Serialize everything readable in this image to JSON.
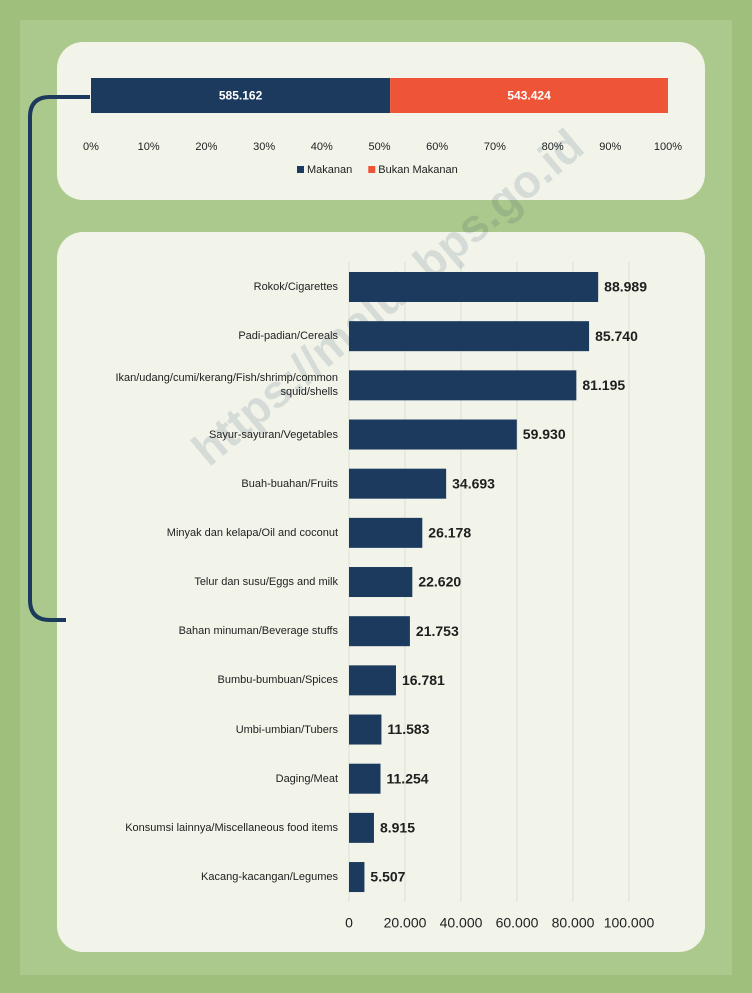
{
  "chart_data": [
    {
      "type": "bar",
      "orientation": "horizontal",
      "stacked": "percent",
      "series": [
        {
          "name": "Makanan",
          "color": "#1c3a5e",
          "values": [
            585162
          ],
          "value_labels": [
            "585.162"
          ]
        },
        {
          "name": "Bukan Makanan",
          "color": "#ee5536",
          "values": [
            543424
          ],
          "value_labels": [
            "543.424"
          ]
        }
      ],
      "xlim": [
        0,
        100
      ],
      "xticks": [
        {
          "value": 0,
          "label": "0%"
        },
        {
          "value": 10,
          "label": "10%"
        },
        {
          "value": 20,
          "label": "20%"
        },
        {
          "value": 30,
          "label": "30%"
        },
        {
          "value": 40,
          "label": "40%"
        },
        {
          "value": 50,
          "label": "50%"
        },
        {
          "value": 60,
          "label": "60%"
        },
        {
          "value": 70,
          "label": "70%"
        },
        {
          "value": 80,
          "label": "80%"
        },
        {
          "value": 90,
          "label": "90%"
        },
        {
          "value": 100,
          "label": "100%"
        }
      ],
      "legend": "bottom"
    },
    {
      "type": "bar",
      "orientation": "horizontal",
      "categories": [
        "Rokok/Cigarettes",
        "Padi-padian/Cereals",
        "Ikan/udang/cumi/kerang/Fish/shrimp/common squid/shells",
        "Sayur-sayuran/Vegetables",
        "Buah-buahan/Fruits",
        "Minyak dan kelapa/Oil and coconut",
        "Telur dan susu/Eggs and milk",
        "Bahan minuman/Beverage stuffs",
        "Bumbu-bumbuan/Spices",
        "Umbi-umbian/Tubers",
        "Daging/Meat",
        "Konsumsi lainnya/Miscellaneous food items",
        "Kacang-kacangan/Legumes"
      ],
      "values": [
        88989,
        85740,
        81195,
        59930,
        34693,
        26178,
        22620,
        21753,
        16781,
        11583,
        11254,
        8915,
        5507
      ],
      "value_labels": [
        "88.989",
        "85.740",
        "81.195",
        "59.930",
        "34.693",
        "26.178",
        "22.620",
        "21.753",
        "16.781",
        "11.583",
        "11.254",
        "8.915",
        "5.507"
      ],
      "color": "#1c3a5e",
      "xlim": [
        0,
        100000
      ],
      "xticks": [
        0,
        {
          "value": 20000,
          "label": "20.000"
        },
        {
          "value": 40000,
          "label": "40.000"
        },
        {
          "value": 60000,
          "label": "60.000"
        },
        {
          "value": 80000,
          "label": "80.000"
        },
        {
          "value": 100000,
          "label": "100.000"
        }
      ],
      "grid": true
    }
  ],
  "watermark": "https://malut.bps.go.id"
}
